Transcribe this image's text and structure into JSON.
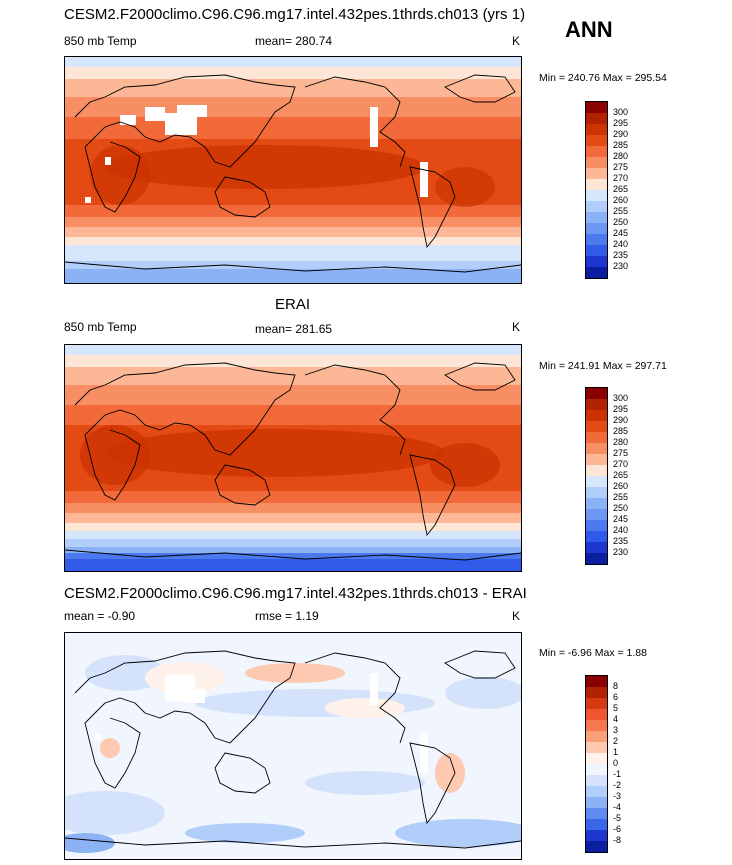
{
  "season": "ANN",
  "panels": [
    {
      "title": "CESM2.F2000climo.C96.C96.mg17.intel.432pes.1thrds.ch013 (yrs 1)",
      "left_label": "850 mb Temp",
      "center_label": "mean= 280.74",
      "units": "K",
      "minmax": "Min = 240.76 Max = 295.54",
      "colorbar": {
        "labels": [
          "300",
          "295",
          "290",
          "285",
          "280",
          "275",
          "270",
          "265",
          "260",
          "255",
          "250",
          "245",
          "240",
          "235",
          "230"
        ],
        "colors": [
          "#8b0000",
          "#b22200",
          "#cc3300",
          "#e44a14",
          "#f26a3a",
          "#f88e64",
          "#fcb796",
          "#fde6d6",
          "#d6e6fb",
          "#b1cdfa",
          "#8cb2f6",
          "#6d97f2",
          "#4c7aee",
          "#2f5be8",
          "#1d36cf",
          "#0b1ea2"
        ]
      }
    },
    {
      "title": "ERAI",
      "left_label": "850 mb Temp",
      "center_label": "mean= 281.65",
      "units": "K",
      "minmax": "Min = 241.91 Max = 297.71",
      "colorbar": {
        "labels": [
          "300",
          "295",
          "290",
          "285",
          "280",
          "275",
          "270",
          "265",
          "260",
          "255",
          "250",
          "245",
          "240",
          "235",
          "230"
        ],
        "colors": [
          "#8b0000",
          "#b22200",
          "#cc3300",
          "#e44a14",
          "#f26a3a",
          "#f88e64",
          "#fcb796",
          "#fde6d6",
          "#d6e6fb",
          "#b1cdfa",
          "#8cb2f6",
          "#6d97f2",
          "#4c7aee",
          "#2f5be8",
          "#1d36cf",
          "#0b1ea2"
        ]
      }
    },
    {
      "title": "CESM2.F2000climo.C96.C96.mg17.intel.432pes.1thrds.ch013 - ERAI",
      "left_label": "mean =  -0.90",
      "center_label": "rmse =   1.19",
      "units": "K",
      "minmax": "Min =  -6.96 Max =   1.88",
      "colorbar": {
        "labels": [
          "8",
          "6",
          "5",
          "4",
          "3",
          "2",
          "1",
          "0",
          "-1",
          "-2",
          "-3",
          "-4",
          "-5",
          "-6",
          "-8"
        ],
        "colors": [
          "#8b0000",
          "#b22200",
          "#d63a10",
          "#ee5530",
          "#f7784f",
          "#fba07a",
          "#fdc9b0",
          "#fff2ea",
          "#f0f5fe",
          "#d4e3fb",
          "#b1cdfa",
          "#8cb2f6",
          "#5f8bf0",
          "#3a66e9",
          "#1d36cf",
          "#0b1ea2"
        ]
      }
    }
  ]
}
